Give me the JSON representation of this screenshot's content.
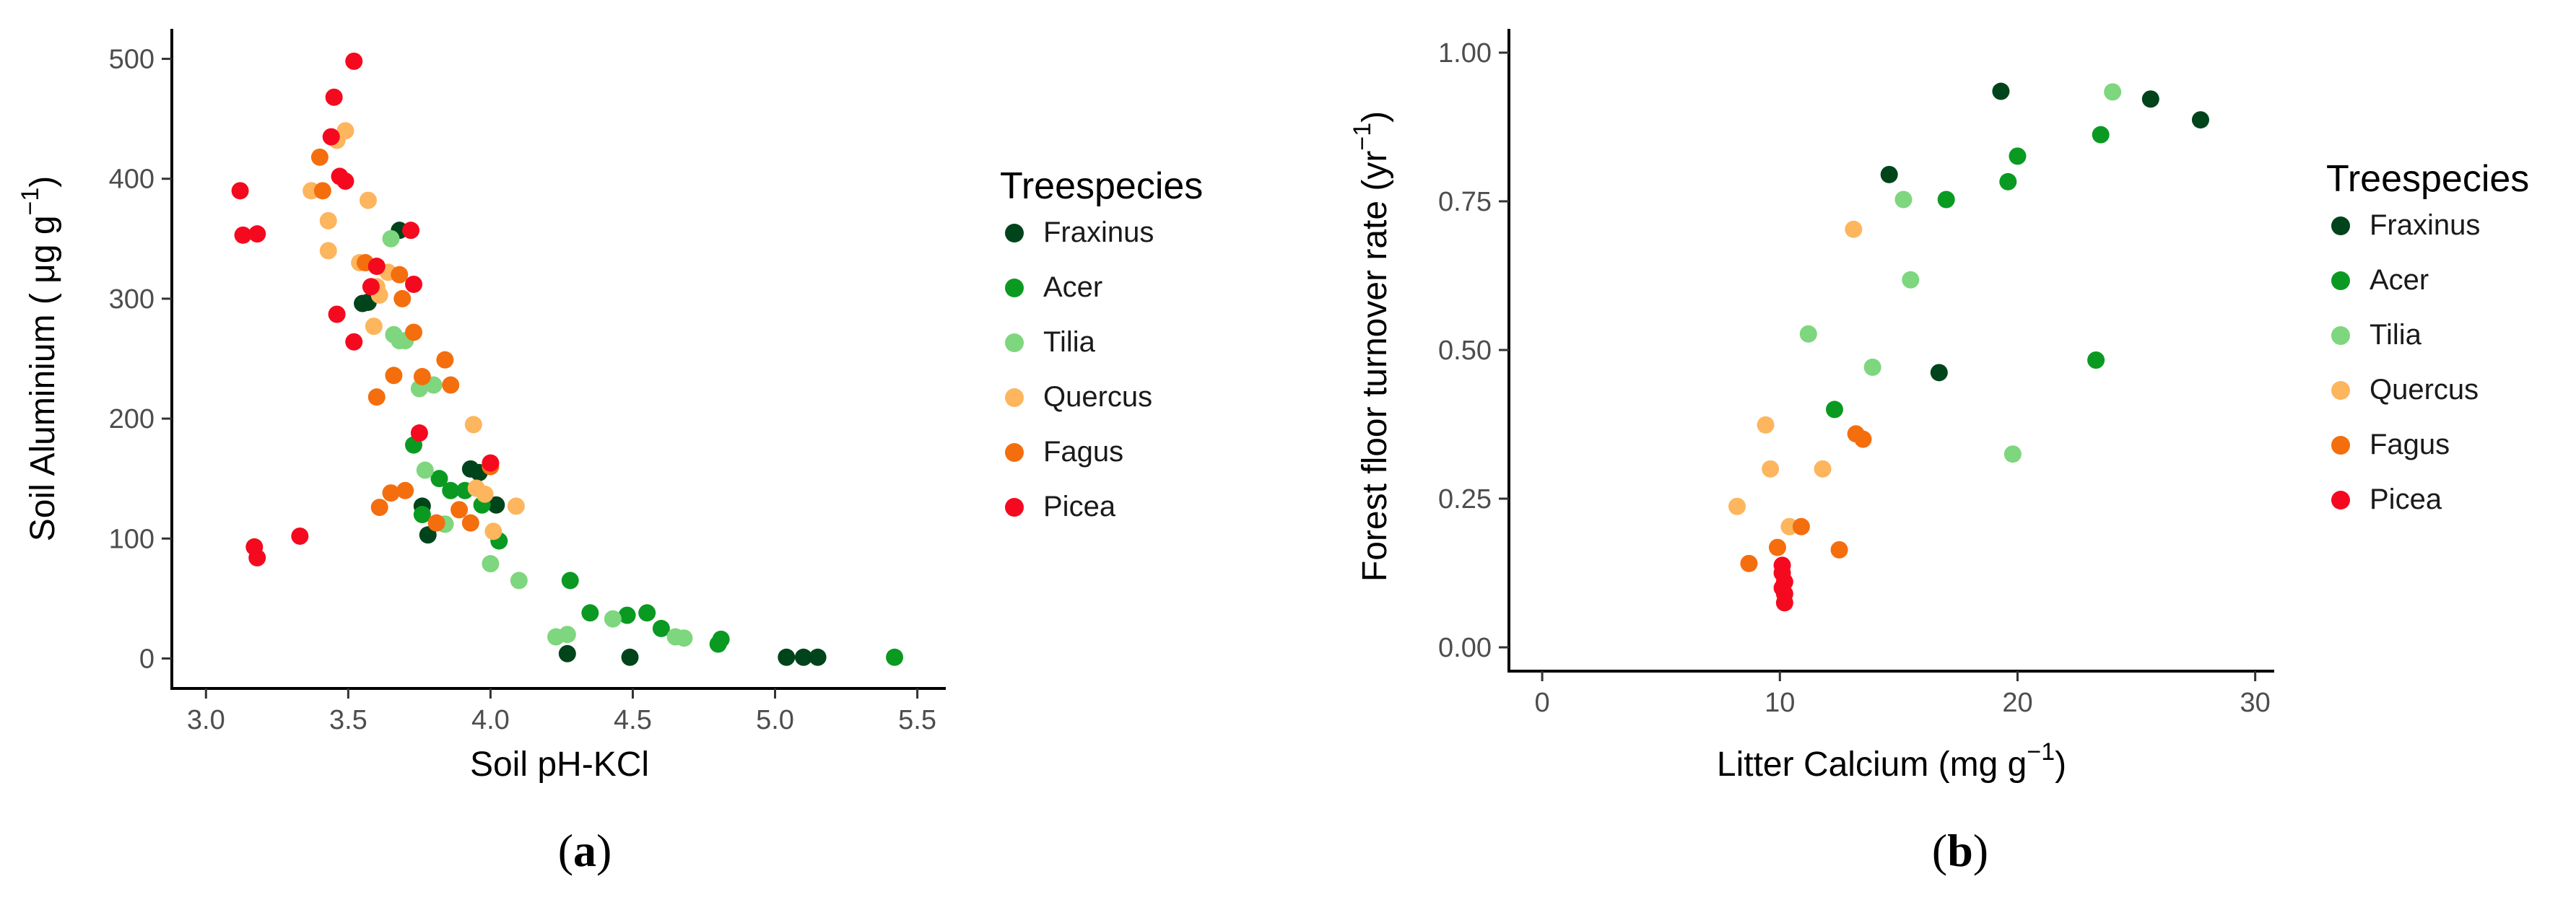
{
  "chart_data": [
    {
      "type": "scatter",
      "panel_label": "a",
      "title": "",
      "xlabel": "Soil pH-KCl",
      "ylabel": "Soil Aluminium (μg g⁻¹)",
      "ylabel_parts": [
        "Soil Aluminium ( μg g",
        "−1",
        ")"
      ],
      "xlim": [
        2.88,
        5.6
      ],
      "ylim": [
        -25,
        525
      ],
      "xticks": [
        3.0,
        3.5,
        4.0,
        4.5,
        5.0,
        5.5
      ],
      "xtick_labels": [
        "3.0",
        "3.5",
        "4.0",
        "4.5",
        "5.0",
        "5.5"
      ],
      "yticks": [
        0,
        100,
        200,
        300,
        400,
        500
      ],
      "ytick_labels": [
        "0",
        "100",
        "200",
        "300",
        "400",
        "500"
      ],
      "grid": false,
      "legend_title": "Treespecies",
      "legend_position": "right",
      "series": [
        {
          "name": "Fraxinus",
          "color": "#00441b",
          "points": [
            [
              3.68,
              357
            ],
            [
              3.55,
              296
            ],
            [
              3.57,
              297
            ],
            [
              3.76,
              127
            ],
            [
              3.78,
              103
            ],
            [
              3.93,
              158
            ],
            [
              3.96,
              155
            ],
            [
              4.02,
              128
            ],
            [
              4.27,
              4
            ],
            [
              4.49,
              1
            ],
            [
              5.04,
              1
            ],
            [
              5.1,
              1
            ],
            [
              5.15,
              1
            ]
          ]
        },
        {
          "name": "Acer",
          "color": "#0a9a22",
          "points": [
            [
              3.73,
              178
            ],
            [
              3.76,
              120
            ],
            [
              3.82,
              150
            ],
            [
              3.84,
              112
            ],
            [
              3.86,
              140
            ],
            [
              3.91,
              140
            ],
            [
              3.97,
              128
            ],
            [
              4.03,
              98
            ],
            [
              4.28,
              65
            ],
            [
              4.35,
              38
            ],
            [
              4.48,
              36
            ],
            [
              4.55,
              38
            ],
            [
              4.6,
              25
            ],
            [
              4.8,
              12
            ],
            [
              4.81,
              16
            ],
            [
              5.42,
              1
            ]
          ]
        },
        {
          "name": "Tilia",
          "color": "#7ed67e",
          "points": [
            [
              3.65,
              350
            ],
            [
              3.66,
              270
            ],
            [
              3.68,
              265
            ],
            [
              3.7,
              265
            ],
            [
              3.75,
              225
            ],
            [
              3.77,
              157
            ],
            [
              3.8,
              228
            ],
            [
              3.84,
              112
            ],
            [
              4.0,
              79
            ],
            [
              4.1,
              65
            ],
            [
              4.23,
              18
            ],
            [
              4.27,
              20
            ],
            [
              4.43,
              33
            ],
            [
              4.65,
              18
            ],
            [
              4.68,
              17
            ]
          ]
        },
        {
          "name": "Quercus",
          "color": "#fdb55e",
          "points": [
            [
              3.37,
              390
            ],
            [
              3.43,
              365
            ],
            [
              3.43,
              340
            ],
            [
              3.46,
              432
            ],
            [
              3.49,
              440
            ],
            [
              3.54,
              330
            ],
            [
              3.57,
              382
            ],
            [
              3.59,
              277
            ],
            [
              3.6,
              310
            ],
            [
              3.61,
              303
            ],
            [
              3.64,
              322
            ],
            [
              3.94,
              195
            ],
            [
              3.95,
              142
            ],
            [
              3.98,
              137
            ],
            [
              4.01,
              106
            ],
            [
              4.09,
              127
            ]
          ]
        },
        {
          "name": "Fagus",
          "color": "#f46e0e",
          "points": [
            [
              3.4,
              418
            ],
            [
              3.41,
              390
            ],
            [
              3.56,
              330
            ],
            [
              3.6,
              218
            ],
            [
              3.61,
              126
            ],
            [
              3.65,
              138
            ],
            [
              3.66,
              236
            ],
            [
              3.68,
              320
            ],
            [
              3.69,
              300
            ],
            [
              3.7,
              140
            ],
            [
              3.73,
              272
            ],
            [
              3.76,
              235
            ],
            [
              3.81,
              113
            ],
            [
              3.84,
              249
            ],
            [
              3.86,
              228
            ],
            [
              3.89,
              124
            ],
            [
              3.93,
              113
            ],
            [
              4.0,
              160
            ]
          ]
        },
        {
          "name": "Picea",
          "color": "#f5091f",
          "points": [
            [
              3.12,
              390
            ],
            [
              3.13,
              353
            ],
            [
              3.18,
              354
            ],
            [
              3.17,
              93
            ],
            [
              3.18,
              84
            ],
            [
              3.33,
              102
            ],
            [
              3.44,
              435
            ],
            [
              3.45,
              468
            ],
            [
              3.46,
              287
            ],
            [
              3.47,
              402
            ],
            [
              3.49,
              398
            ],
            [
              3.52,
              498
            ],
            [
              3.52,
              264
            ],
            [
              3.58,
              310
            ],
            [
              3.6,
              327
            ],
            [
              3.72,
              357
            ],
            [
              3.73,
              312
            ],
            [
              3.75,
              188
            ],
            [
              4.0,
              163
            ]
          ]
        }
      ]
    },
    {
      "type": "scatter",
      "panel_label": "b",
      "title": "",
      "xlabel": "Litter Calcium (mg g⁻¹)",
      "xlabel_parts": [
        "Litter Calcium (mg g",
        "−1",
        ")"
      ],
      "ylabel": "Forest floor turnover rate (yr⁻¹)",
      "ylabel_parts": [
        "Forest floor turnover rate (yr",
        "−1",
        ")"
      ],
      "xlim": [
        -1.4,
        30.8
      ],
      "ylim": [
        -0.04,
        1.04
      ],
      "xticks": [
        0,
        10,
        20,
        30
      ],
      "xtick_labels": [
        "0",
        "10",
        "20",
        "30"
      ],
      "yticks": [
        0.0,
        0.25,
        0.5,
        0.75,
        1.0
      ],
      "ytick_labels": [
        "0.00",
        "0.25",
        "0.50",
        "0.75",
        "1.00"
      ],
      "grid": false,
      "legend_title": "Treespecies",
      "legend_position": "right",
      "series": [
        {
          "name": "Fraxinus",
          "color": "#00441b",
          "points": [
            [
              14.6,
              0.795
            ],
            [
              16.7,
              0.462
            ],
            [
              19.3,
              0.935
            ],
            [
              25.6,
              0.922
            ],
            [
              27.7,
              0.887
            ]
          ]
        },
        {
          "name": "Acer",
          "color": "#0a9a22",
          "points": [
            [
              12.3,
              0.4
            ],
            [
              17.0,
              0.753
            ],
            [
              19.6,
              0.783
            ],
            [
              20.0,
              0.826
            ],
            [
              23.3,
              0.483
            ],
            [
              23.5,
              0.862
            ]
          ]
        },
        {
          "name": "Tilia",
          "color": "#7ed67e",
          "points": [
            [
              11.2,
              0.527
            ],
            [
              13.9,
              0.471
            ],
            [
              15.2,
              0.753
            ],
            [
              15.5,
              0.618
            ],
            [
              19.8,
              0.325
            ],
            [
              24.0,
              0.934
            ]
          ]
        },
        {
          "name": "Quercus",
          "color": "#fdb55e",
          "points": [
            [
              8.2,
              0.237
            ],
            [
              9.4,
              0.374
            ],
            [
              9.6,
              0.3
            ],
            [
              10.4,
              0.203
            ],
            [
              11.8,
              0.3
            ],
            [
              13.1,
              0.703
            ]
          ]
        },
        {
          "name": "Fagus",
          "color": "#f46e0e",
          "points": [
            [
              8.7,
              0.141
            ],
            [
              9.9,
              0.168
            ],
            [
              10.9,
              0.203
            ],
            [
              12.5,
              0.164
            ],
            [
              13.2,
              0.359
            ],
            [
              13.5,
              0.35
            ]
          ]
        },
        {
          "name": "Picea",
          "color": "#f5091f",
          "points": [
            [
              10.1,
              0.138
            ],
            [
              10.1,
              0.125
            ],
            [
              10.2,
              0.11
            ],
            [
              10.1,
              0.1
            ],
            [
              10.2,
              0.09
            ],
            [
              10.2,
              0.075
            ]
          ]
        }
      ]
    }
  ]
}
